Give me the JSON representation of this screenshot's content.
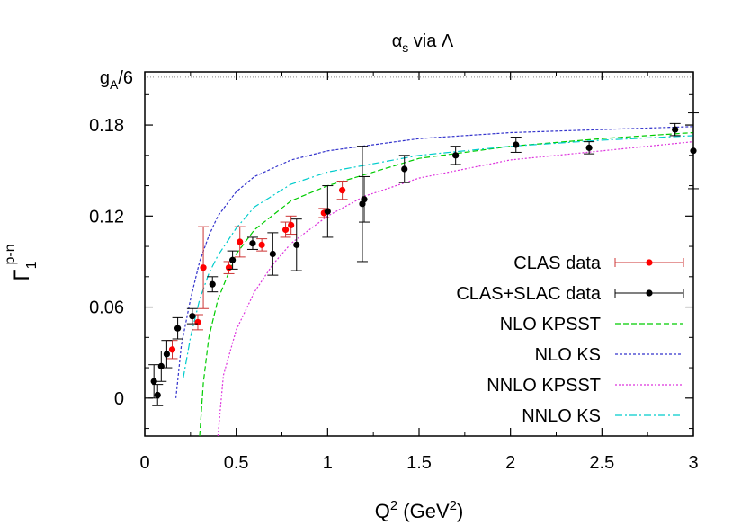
{
  "chart_data": {
    "type": "scatter",
    "title": {
      "main": "α",
      "sub": "s",
      "rest": " via Λ"
    },
    "xlabel": {
      "q": "Q",
      "sup1": "2",
      "mid": " (GeV",
      "sup2": "2",
      "end": ")"
    },
    "ylabel": {
      "main": "Γ",
      "sub": "1",
      "sup": "p-n"
    },
    "xlim": [
      0,
      3
    ],
    "ylim": [
      -0.025,
      0.215
    ],
    "xticks": [
      0,
      0.5,
      1,
      1.5,
      2,
      2.5,
      3
    ],
    "xtick_labels": [
      "0",
      "0.5",
      "1",
      "1.5",
      "2",
      "2.5",
      "3"
    ],
    "yticks": [
      0,
      0.06,
      0.12,
      0.18
    ],
    "ytick_labels": [
      "0",
      "0.06",
      "0.12",
      "0.18"
    ],
    "gA6": {
      "value": 0.2115,
      "label_main": "g",
      "label_sub": "A",
      "label_rest": "/6"
    },
    "legend_position": "right",
    "grid": false,
    "series": [
      {
        "name": "CLAS data",
        "kind": "points",
        "color": "#ff0000",
        "errcolor": "#cc3333",
        "points": [
          {
            "x": 0.15,
            "y": 0.032,
            "err": 0.006
          },
          {
            "x": 0.29,
            "y": 0.05,
            "err": 0.005
          },
          {
            "x": 0.32,
            "y": 0.086,
            "err": 0.027
          },
          {
            "x": 0.46,
            "y": 0.086,
            "err": 0.004
          },
          {
            "x": 0.52,
            "y": 0.103,
            "err": 0.01
          },
          {
            "x": 0.64,
            "y": 0.101,
            "err": 0.004
          },
          {
            "x": 0.77,
            "y": 0.111,
            "err": 0.005
          },
          {
            "x": 0.8,
            "y": 0.114,
            "err": 0.006
          },
          {
            "x": 0.98,
            "y": 0.122,
            "err": 0.003
          },
          {
            "x": 1.08,
            "y": 0.137,
            "err": 0.006
          }
        ]
      },
      {
        "name": "CLAS+SLAC data",
        "kind": "points",
        "color": "#000000",
        "errcolor": "#000000",
        "points": [
          {
            "x": 0.05,
            "y": 0.011,
            "err": 0.011
          },
          {
            "x": 0.07,
            "y": 0.002,
            "err": 0.007
          },
          {
            "x": 0.09,
            "y": 0.021,
            "err": 0.01
          },
          {
            "x": 0.12,
            "y": 0.029,
            "err": 0.009
          },
          {
            "x": 0.18,
            "y": 0.046,
            "err": 0.007
          },
          {
            "x": 0.26,
            "y": 0.054,
            "err": 0.005
          },
          {
            "x": 0.37,
            "y": 0.075,
            "err": 0.005
          },
          {
            "x": 0.48,
            "y": 0.091,
            "err": 0.006
          },
          {
            "x": 0.59,
            "y": 0.102,
            "err": 0.004
          },
          {
            "x": 0.7,
            "y": 0.095,
            "err": 0.014
          },
          {
            "x": 0.83,
            "y": 0.101,
            "err": 0.017
          },
          {
            "x": 1.0,
            "y": 0.123,
            "err": 0.017
          },
          {
            "x": 1.19,
            "y": 0.128,
            "err": 0.038
          },
          {
            "x": 1.2,
            "y": 0.131,
            "err": 0.015
          },
          {
            "x": 1.42,
            "y": 0.151,
            "err": 0.009
          },
          {
            "x": 1.7,
            "y": 0.16,
            "err": 0.006
          },
          {
            "x": 2.03,
            "y": 0.167,
            "err": 0.005
          },
          {
            "x": 2.43,
            "y": 0.165,
            "err": 0.004
          },
          {
            "x": 2.9,
            "y": 0.177,
            "err": 0.004
          },
          {
            "x": 3.0,
            "y": 0.163,
            "err": 0.025
          }
        ]
      },
      {
        "name": "NLO KPSST",
        "kind": "line",
        "color": "#00cc00",
        "dash": "6,3",
        "points": [
          [
            0.3,
            -0.025
          ],
          [
            0.32,
            0.01
          ],
          [
            0.35,
            0.04
          ],
          [
            0.4,
            0.065
          ],
          [
            0.5,
            0.095
          ],
          [
            0.6,
            0.111
          ],
          [
            0.8,
            0.13
          ],
          [
            1.0,
            0.14
          ],
          [
            1.25,
            0.149
          ],
          [
            1.5,
            0.158
          ],
          [
            2.0,
            0.166
          ],
          [
            2.5,
            0.171
          ],
          [
            3.0,
            0.175
          ]
        ]
      },
      {
        "name": "NLO KS",
        "kind": "line",
        "color": "#3333cc",
        "dash": "3,2",
        "points": [
          [
            0.17,
            0.0
          ],
          [
            0.2,
            0.035
          ],
          [
            0.25,
            0.065
          ],
          [
            0.3,
            0.09
          ],
          [
            0.35,
            0.107
          ],
          [
            0.4,
            0.12
          ],
          [
            0.5,
            0.136
          ],
          [
            0.6,
            0.146
          ],
          [
            0.8,
            0.157
          ],
          [
            1.0,
            0.163
          ],
          [
            1.5,
            0.171
          ],
          [
            2.0,
            0.175
          ],
          [
            2.5,
            0.177
          ],
          [
            3.0,
            0.179
          ]
        ]
      },
      {
        "name": "NNLO KPSST",
        "kind": "line",
        "color": "#dd33dd",
        "dash": "2,2",
        "points": [
          [
            0.4,
            -0.025
          ],
          [
            0.43,
            0.015
          ],
          [
            0.5,
            0.045
          ],
          [
            0.6,
            0.07
          ],
          [
            0.7,
            0.088
          ],
          [
            0.8,
            0.102
          ],
          [
            1.0,
            0.12
          ],
          [
            1.2,
            0.133
          ],
          [
            1.5,
            0.145
          ],
          [
            2.0,
            0.157
          ],
          [
            2.5,
            0.163
          ],
          [
            3.0,
            0.169
          ]
        ]
      },
      {
        "name": "NNLO KS",
        "kind": "line",
        "color": "#00cccc",
        "dash": "8,3,2,3",
        "points": [
          [
            0.21,
            0.013
          ],
          [
            0.25,
            0.04
          ],
          [
            0.3,
            0.065
          ],
          [
            0.35,
            0.082
          ],
          [
            0.4,
            0.094
          ],
          [
            0.5,
            0.112
          ],
          [
            0.6,
            0.126
          ],
          [
            0.8,
            0.141
          ],
          [
            1.0,
            0.149
          ],
          [
            1.5,
            0.16
          ],
          [
            2.0,
            0.166
          ],
          [
            2.5,
            0.17
          ],
          [
            3.0,
            0.173
          ]
        ]
      }
    ]
  }
}
